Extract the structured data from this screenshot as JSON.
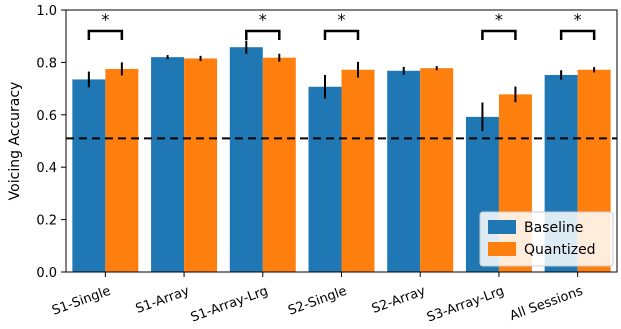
{
  "chart_data": {
    "type": "bar",
    "title": "",
    "xlabel": "",
    "ylabel": "Voicing Accuracy",
    "ylim": [
      0,
      1.0
    ],
    "yticks": [
      "0.0",
      "0.2",
      "0.4",
      "0.6",
      "0.8",
      "1.0"
    ],
    "grid": false,
    "legend_position": "bottom-right",
    "reference_line": {
      "y": 0.51,
      "style": "dashed",
      "color": "#000000"
    },
    "categories": [
      "S1-Single",
      "S1-Array",
      "S1-Array-Lrg",
      "S2-Single",
      "S2-Array",
      "S3-Array-Lrg",
      "All Sessions"
    ],
    "series": [
      {
        "name": "Baseline",
        "color": "#1f77b4",
        "values": [
          0.735,
          0.82,
          0.858,
          0.707,
          0.768,
          0.592,
          0.752
        ],
        "errors": [
          0.03,
          0.008,
          0.025,
          0.045,
          0.015,
          0.055,
          0.018
        ]
      },
      {
        "name": "Quantized",
        "color": "#ff7f0e",
        "values": [
          0.775,
          0.815,
          0.818,
          0.772,
          0.778,
          0.678,
          0.772
        ],
        "errors": [
          0.025,
          0.01,
          0.015,
          0.03,
          0.008,
          0.03,
          0.01
        ]
      }
    ],
    "significance": [
      {
        "category": "S1-Single",
        "label": "*"
      },
      {
        "category": "S1-Array-Lrg",
        "label": "*"
      },
      {
        "category": "S2-Single",
        "label": "*"
      },
      {
        "category": "S3-Array-Lrg",
        "label": "*"
      },
      {
        "category": "All Sessions",
        "label": "*"
      }
    ]
  }
}
